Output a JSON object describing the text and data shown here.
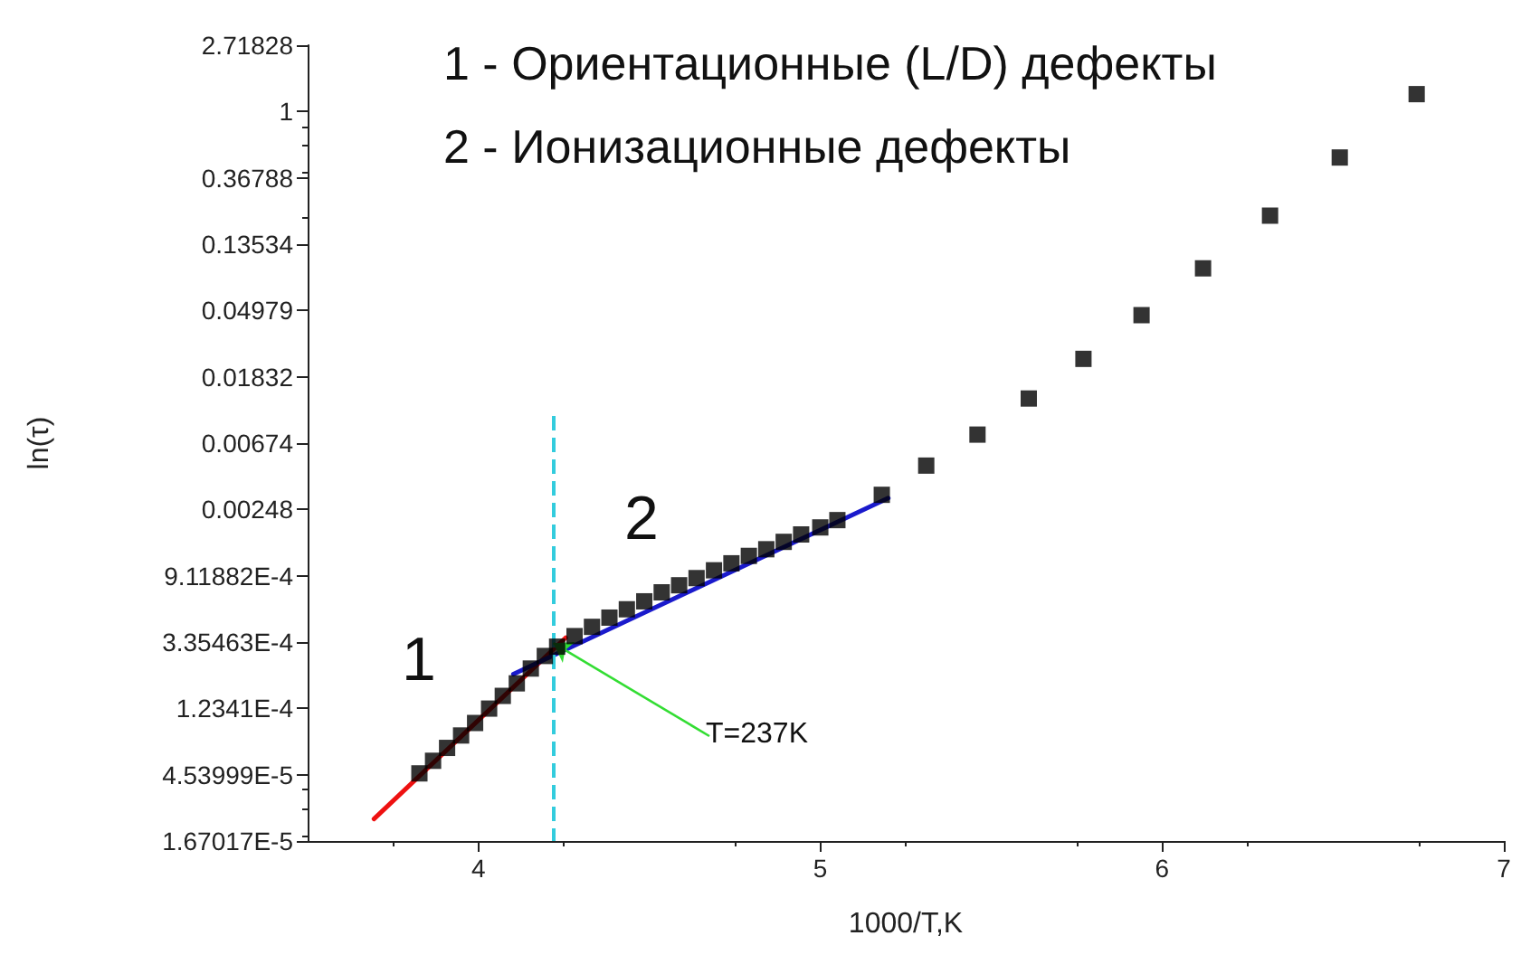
{
  "chart_data": {
    "type": "scatter",
    "xlabel": "1000/T,K",
    "ylabel": "ln(τ)",
    "log": "y",
    "grid": false,
    "legend": false,
    "xlim": [
      3.5,
      7
    ],
    "xticks": [
      4,
      5,
      6,
      7
    ],
    "ylim": [
      1.67017e-05,
      2.71828
    ],
    "yticks": [
      {
        "value": 1.67017e-05,
        "label": "1.67017E-5"
      },
      {
        "value": 4.53999e-05,
        "label": "4.53999E-5"
      },
      {
        "value": 0.00012341,
        "label": "1.2341E-4"
      },
      {
        "value": 0.000335463,
        "label": "3.35463E-4"
      },
      {
        "value": 0.000911882,
        "label": "9.11882E-4"
      },
      {
        "value": 0.00248,
        "label": "0.00248"
      },
      {
        "value": 0.00674,
        "label": "0.00674"
      },
      {
        "value": 0.01832,
        "label": "0.01832"
      },
      {
        "value": 0.04979,
        "label": "0.04979"
      },
      {
        "value": 0.13534,
        "label": "0.13534"
      },
      {
        "value": 0.36788,
        "label": "0.36788"
      },
      {
        "value": 1,
        "label": "1"
      },
      {
        "value": 2.71828,
        "label": "2.71828"
      }
    ],
    "series": [
      {
        "marker": "square",
        "color": "#000000",
        "x": [
          3.827,
          3.867,
          3.908,
          3.949,
          3.99,
          4.031,
          4.071,
          4.112,
          4.153,
          4.194,
          4.23,
          4.281,
          4.332,
          4.383,
          4.434,
          4.485,
          4.536,
          4.587,
          4.638,
          4.689,
          4.74,
          4.791,
          4.842,
          4.893,
          4.944,
          5.0,
          5.05,
          5.18,
          5.31,
          5.46,
          5.61,
          5.77,
          5.94,
          6.12,
          6.316,
          6.52,
          6.745
        ],
        "values": [
          4.63e-05,
          5.6e-05,
          6.8e-05,
          8.2e-05,
          9.9e-05,
          0.000123,
          0.000149,
          0.00018,
          0.000225,
          0.000272,
          0.000313,
          0.000367,
          0.000422,
          0.000485,
          0.00055,
          0.00062,
          0.00071,
          0.00079,
          0.00088,
          0.00099,
          0.0011,
          0.00123,
          0.00136,
          0.00152,
          0.0017,
          0.00189,
          0.00211,
          0.00309,
          0.0048,
          0.00766,
          0.0132,
          0.024,
          0.0464,
          0.094,
          0.208,
          0.5,
          1.3
        ]
      },
      {
        "type": "line",
        "marker": "none",
        "line_style": "solid",
        "color": "#ee1111",
        "x": [
          3.694,
          4.255
        ],
        "values": [
          2.33e-05,
          0.000358
        ]
      },
      {
        "type": "line",
        "marker": "none",
        "line_style": "solid",
        "color": "#1a1acc",
        "x": [
          4.102,
          5.199
        ],
        "values": [
          0.000207,
          0.00294
        ]
      }
    ],
    "ref_lines": [
      {
        "axis": "x",
        "value": 4.219,
        "color": "#33ccdd",
        "line_style": "dashed"
      }
    ],
    "annotations": [
      "1 - Ориентационные (L/D) дефекты",
      "2 - Ионизационные дефекты",
      "1",
      "2",
      {
        "text": "T=237K",
        "x": 4.219,
        "y": 0.00033
      }
    ]
  }
}
